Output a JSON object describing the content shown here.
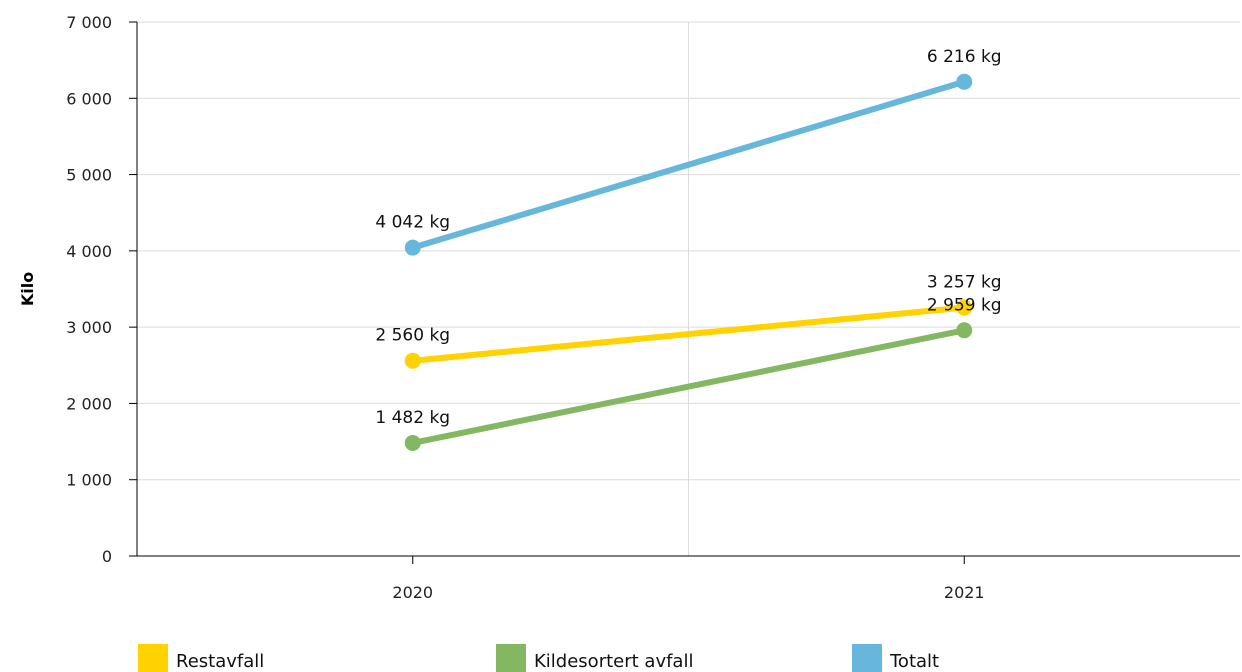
{
  "chart_data": {
    "type": "line",
    "categories": [
      "2020",
      "2021"
    ],
    "ylabel": "Kilo",
    "ylim": [
      0,
      7000
    ],
    "yticks": [
      0,
      1000,
      2000,
      3000,
      4000,
      5000,
      6000,
      7000
    ],
    "ytick_labels": [
      "0",
      "1 000",
      "2 000",
      "3 000",
      "4 000",
      "5 000",
      "6 000",
      "7 000"
    ],
    "grid": true,
    "legend_position": "bottom",
    "series": [
      {
        "name": "Restavfall",
        "color": "#ffd200",
        "values": [
          2560,
          3257
        ],
        "labels": [
          "2 560 kg",
          "3 257 kg"
        ]
      },
      {
        "name": "Kildesortert avfall",
        "color": "#84b761",
        "values": [
          1482,
          2959
        ],
        "labels": [
          "1 482 kg",
          "2 959 kg"
        ]
      },
      {
        "name": "Totalt",
        "color": "#67b7dc",
        "values": [
          4042,
          6216
        ],
        "labels": [
          "4 042 kg",
          "6 216 kg"
        ]
      }
    ]
  }
}
